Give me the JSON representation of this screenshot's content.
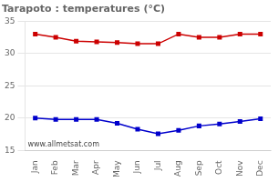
{
  "chart_data": {
    "type": "line",
    "title": "Tarapoto : temperatures (°C)",
    "categories": [
      "Jan",
      "Feb",
      "Mar",
      "Apr",
      "May",
      "Jun",
      "Jul",
      "Aug",
      "Sep",
      "Oct",
      "Nov",
      "Dec"
    ],
    "series": [
      {
        "color": "#cc0000",
        "marker": "square",
        "values": [
          33.0,
          32.5,
          31.9,
          31.8,
          31.7,
          31.5,
          31.5,
          33.0,
          32.5,
          32.5,
          33.0,
          33.0
        ]
      },
      {
        "color": "#0000cc",
        "marker": "square",
        "values": [
          20.0,
          19.8,
          19.8,
          19.8,
          19.2,
          18.3,
          17.6,
          18.1,
          18.8,
          19.1,
          19.5,
          19.9
        ]
      }
    ],
    "ylim": [
      15,
      35
    ],
    "yticks": [
      15,
      20,
      25,
      30,
      35
    ],
    "grid": "y",
    "annotations": [
      "www.allmetsat.com"
    ]
  }
}
